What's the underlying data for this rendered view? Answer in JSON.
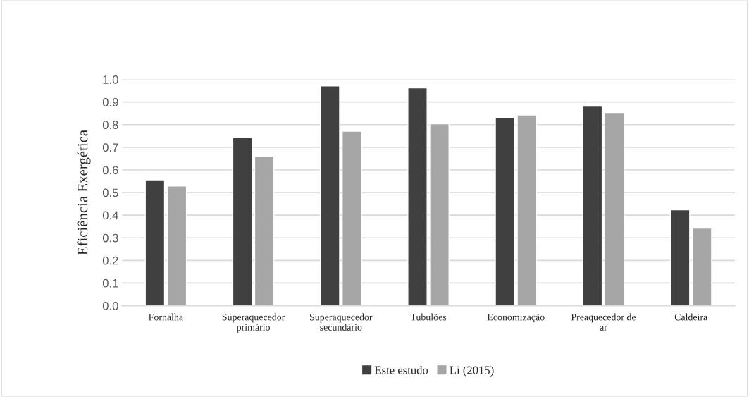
{
  "chart_data": {
    "type": "bar",
    "ylabel": "Eficiência Exergética",
    "categories": [
      "Fornalha",
      "Superaquecedor\nprimário",
      "Superaquecedor\nsecundário",
      "Tubulões",
      "Economização",
      "Preaquecedor de\nar",
      "Caldeira"
    ],
    "series": [
      {
        "name": "Este estudo",
        "color": "#404040",
        "values": [
          0.556,
          0.742,
          0.971,
          0.963,
          0.833,
          0.882,
          0.424
        ]
      },
      {
        "name": "Li (2015)",
        "color": "#a6a6a6",
        "values": [
          0.529,
          0.66,
          0.771,
          0.804,
          0.843,
          0.854,
          0.343
        ]
      }
    ],
    "ylim": [
      0,
      1.0
    ],
    "yticks": [
      {
        "value": 0,
        "label": "0.0"
      },
      {
        "value": 0.1,
        "label": "0.1"
      },
      {
        "value": 0.2,
        "label": "0.2"
      },
      {
        "value": 0.3,
        "label": "0.3"
      },
      {
        "value": 0.4,
        "label": "0.4"
      },
      {
        "value": 0.5,
        "label": "0.5"
      },
      {
        "value": 0.6,
        "label": "0.6"
      },
      {
        "value": 0.7,
        "label": "0.7"
      },
      {
        "value": 0.8,
        "label": "0.8"
      },
      {
        "value": 0.9,
        "label": "0.9"
      },
      {
        "value": 1.0,
        "label": "1.0"
      }
    ],
    "grid": "y",
    "legend": "bottom"
  }
}
